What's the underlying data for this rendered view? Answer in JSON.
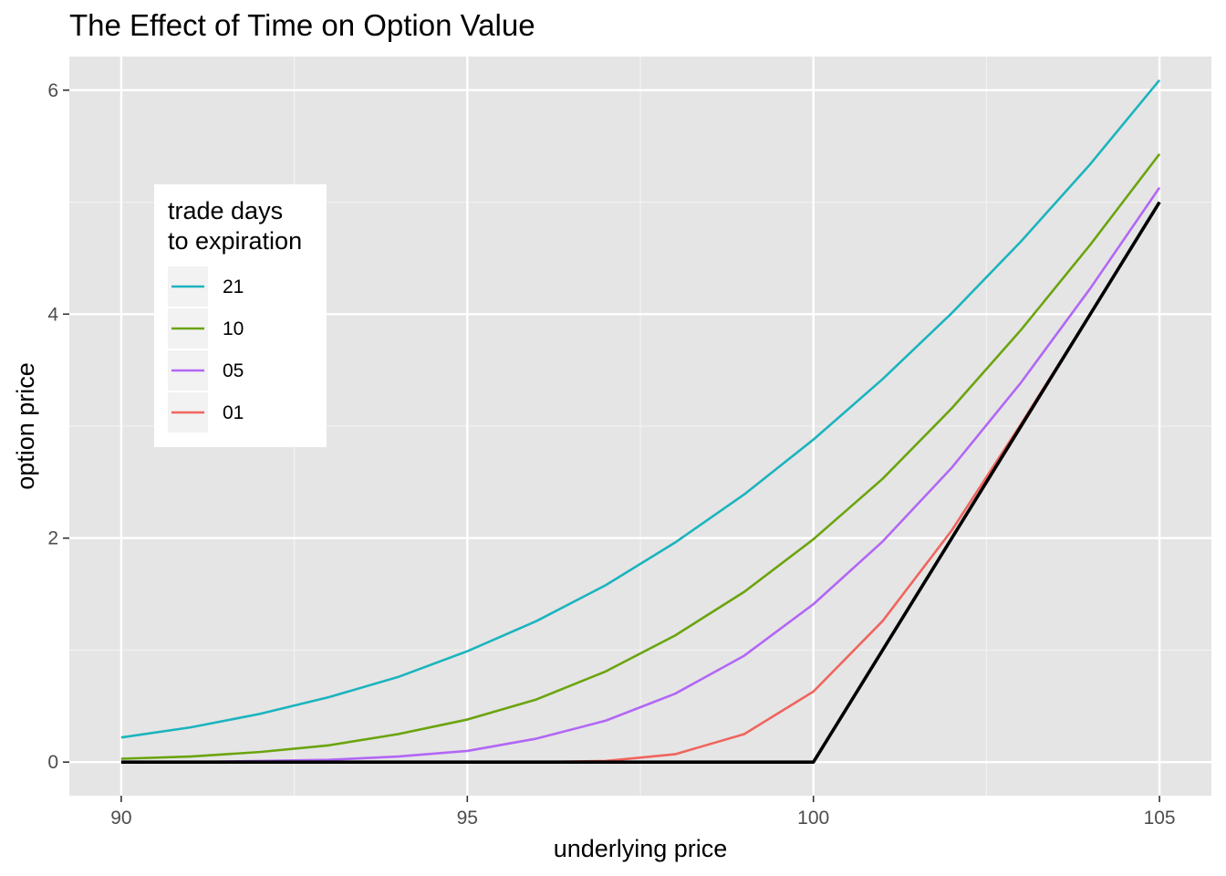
{
  "chart_data": {
    "type": "line",
    "title": "The Effect of Time on Option Value",
    "xlabel": "underlying price",
    "ylabel": "option price",
    "xlim": [
      89.25,
      105.75
    ],
    "ylim": [
      -0.3,
      6.3
    ],
    "x_ticks": [
      90,
      95,
      100,
      105
    ],
    "x_tick_labels": [
      "90",
      "95",
      "100",
      "105"
    ],
    "x_minor_ticks": [
      92.5,
      97.5,
      102.5
    ],
    "y_ticks": [
      0,
      2,
      4,
      6
    ],
    "y_tick_labels": [
      "0",
      "2",
      "4",
      "6"
    ],
    "y_minor_ticks": [
      1,
      3,
      5
    ],
    "grid": true,
    "legend": {
      "title_lines": [
        "trade days",
        "to expiration"
      ],
      "placement": "top-left, inside plot"
    },
    "x": [
      90,
      91,
      92,
      93,
      94,
      95,
      96,
      97,
      98,
      99,
      100,
      101,
      102,
      103,
      104,
      105
    ],
    "series": [
      {
        "name": "21",
        "color": "#1bb4be",
        "values": [
          0.22,
          0.31,
          0.43,
          0.58,
          0.76,
          0.99,
          1.26,
          1.58,
          1.96,
          2.39,
          2.88,
          3.42,
          4.01,
          4.65,
          5.34,
          6.09
        ]
      },
      {
        "name": "10",
        "color": "#6ba40e",
        "values": [
          0.03,
          0.05,
          0.09,
          0.15,
          0.25,
          0.38,
          0.56,
          0.81,
          1.13,
          1.52,
          1.99,
          2.53,
          3.16,
          3.86,
          4.62,
          5.43
        ]
      },
      {
        "name": "05",
        "color": "#b267f5",
        "values": [
          0.0,
          0.0,
          0.01,
          0.02,
          0.05,
          0.1,
          0.21,
          0.37,
          0.61,
          0.95,
          1.41,
          1.97,
          2.63,
          3.39,
          4.23,
          5.13
        ]
      },
      {
        "name": "01",
        "color": "#f0655e",
        "values": [
          0.0,
          0.0,
          0.0,
          0.0,
          0.0,
          0.0,
          0.0,
          0.01,
          0.07,
          0.25,
          0.63,
          1.26,
          2.07,
          3.02,
          4.0,
          5.0
        ]
      },
      {
        "color": "#000000",
        "values": [
          0,
          0,
          0,
          0,
          0,
          0,
          0,
          0,
          0,
          0,
          0,
          1,
          2,
          3,
          4,
          5
        ]
      }
    ]
  }
}
